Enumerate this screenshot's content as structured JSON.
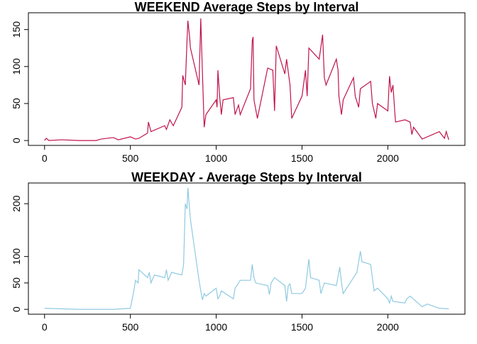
{
  "chart_data": [
    {
      "type": "line",
      "title": "WEEKEND Average Steps by Interval",
      "color": "#c0134a",
      "x": [
        0,
        10,
        25,
        100,
        200,
        300,
        330,
        400,
        430,
        500,
        530,
        550,
        600,
        605,
        620,
        700,
        710,
        730,
        750,
        800,
        805,
        820,
        830,
        835,
        845,
        850,
        900,
        910,
        920,
        930,
        940,
        1000,
        1005,
        1010,
        1020,
        1030,
        1040,
        1100,
        1110,
        1130,
        1140,
        1200,
        1210,
        1215,
        1220,
        1240,
        1300,
        1330,
        1340,
        1350,
        1400,
        1410,
        1430,
        1440,
        1500,
        1520,
        1530,
        1540,
        1600,
        1620,
        1630,
        1640,
        1700,
        1710,
        1715,
        1730,
        1740,
        1800,
        1810,
        1830,
        1840,
        1900,
        1910,
        1930,
        1940,
        2000,
        2010,
        2020,
        2030,
        2040,
        2045,
        2100,
        2130,
        2140,
        2150,
        2200,
        2300,
        2330,
        2340,
        2355
      ],
      "values": [
        0,
        3,
        0,
        1,
        0,
        0,
        2,
        4,
        1,
        5,
        2,
        3,
        10,
        25,
        12,
        20,
        15,
        28,
        20,
        45,
        88,
        75,
        135,
        162,
        140,
        125,
        75,
        165,
        90,
        18,
        35,
        55,
        45,
        95,
        60,
        35,
        55,
        58,
        35,
        48,
        35,
        70,
        135,
        140,
        55,
        30,
        98,
        95,
        40,
        128,
        90,
        110,
        75,
        30,
        60,
        95,
        60,
        125,
        110,
        143,
        85,
        75,
        110,
        95,
        60,
        35,
        55,
        85,
        60,
        45,
        70,
        80,
        50,
        30,
        50,
        40,
        87,
        65,
        75,
        40,
        25,
        28,
        25,
        8,
        18,
        2,
        12,
        3,
        12,
        1
      ],
      "xlim": [
        -94.2,
        2449.2
      ],
      "ylim": [
        -6.6,
        172.7
      ],
      "xticks": [
        0,
        500,
        1000,
        1500,
        2000
      ],
      "yticks": [
        0,
        50,
        100,
        150
      ]
    },
    {
      "type": "line",
      "title": "WEEKDAY - Average Steps by Interval",
      "color": "#8fcae0",
      "x": [
        0,
        100,
        200,
        300,
        400,
        500,
        505,
        520,
        530,
        545,
        550,
        600,
        610,
        620,
        640,
        700,
        710,
        720,
        740,
        800,
        810,
        820,
        830,
        835,
        840,
        850,
        900,
        910,
        920,
        930,
        940,
        1000,
        1010,
        1020,
        1030,
        1100,
        1110,
        1140,
        1200,
        1210,
        1220,
        1230,
        1300,
        1310,
        1320,
        1340,
        1400,
        1410,
        1420,
        1430,
        1440,
        1500,
        1520,
        1540,
        1550,
        1600,
        1610,
        1630,
        1700,
        1720,
        1730,
        1740,
        1800,
        1820,
        1840,
        1850,
        1900,
        1920,
        1940,
        2000,
        2010,
        2020,
        2030,
        2100,
        2110,
        2130,
        2200,
        2230,
        2300,
        2355
      ],
      "values": [
        2,
        1,
        0,
        0,
        0,
        2,
        10,
        35,
        55,
        50,
        75,
        60,
        70,
        50,
        65,
        60,
        75,
        55,
        70,
        65,
        85,
        200,
        190,
        230,
        210,
        170,
        55,
        35,
        18,
        30,
        25,
        40,
        20,
        25,
        35,
        20,
        40,
        55,
        55,
        85,
        60,
        50,
        45,
        28,
        50,
        60,
        45,
        15,
        45,
        48,
        30,
        30,
        40,
        95,
        60,
        55,
        30,
        50,
        45,
        80,
        50,
        30,
        60,
        70,
        110,
        90,
        85,
        35,
        40,
        20,
        12,
        25,
        15,
        12,
        20,
        25,
        5,
        10,
        2,
        1
      ],
      "xlim": [
        -94.2,
        2449.2
      ],
      "ylim": [
        -9.2,
        239.2
      ],
      "xticks": [
        0,
        500,
        1000,
        1500,
        2000
      ],
      "yticks": [
        0,
        50,
        100,
        200
      ]
    }
  ]
}
